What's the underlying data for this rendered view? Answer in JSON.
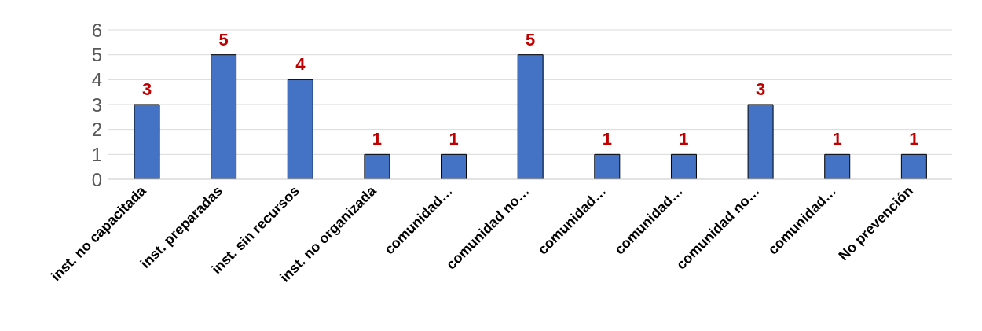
{
  "chart_data": {
    "type": "bar",
    "categories": [
      "inst. no capacitada",
      "inst. preparadas",
      "inst. sin recursos",
      "inst. no organizada",
      "comunidad…",
      "comunidad no…",
      "comunidad…",
      "comunidad…",
      "comunidad no…",
      "comunidad…",
      "No prevención"
    ],
    "values": [
      3,
      5,
      4,
      1,
      1,
      5,
      1,
      1,
      3,
      1,
      1
    ],
    "color": "#4472c4",
    "ylim": [
      0,
      6
    ],
    "yticks": [
      0,
      1,
      2,
      3,
      4,
      5,
      6
    ],
    "grid": "y",
    "data_labels": true
  }
}
